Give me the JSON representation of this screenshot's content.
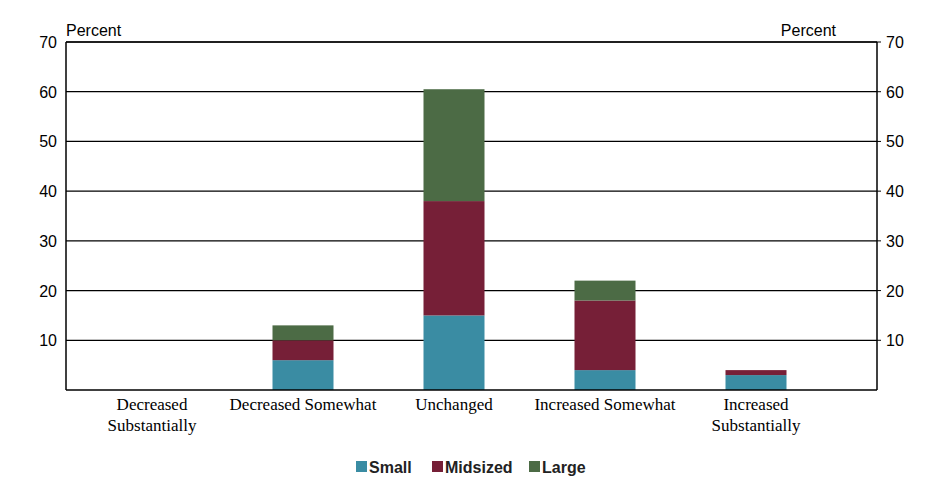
{
  "chart_data": {
    "type": "bar",
    "stacked": true,
    "grid": true,
    "y_label": "Percent",
    "y2_label": "Percent",
    "categories": [
      "Decreased Substantially",
      "Decreased Somewhat",
      "Unchanged",
      "Increased Somewhat",
      "Increased Substantially"
    ],
    "series": [
      {
        "name": "Small",
        "color": "#3a8ca3",
        "values": [
          0,
          6,
          15,
          4,
          3
        ]
      },
      {
        "name": "Midsized",
        "color": "#761f37",
        "values": [
          0,
          4,
          23,
          14,
          1
        ]
      },
      {
        "name": "Large",
        "color": "#4c6b45",
        "values": [
          0,
          3,
          22.5,
          4,
          0
        ]
      }
    ],
    "ylim": [
      0,
      70
    ],
    "yticks": [
      10,
      20,
      30,
      40,
      50,
      60,
      70
    ],
    "y2lim": [
      0,
      70
    ],
    "y2ticks": [
      10,
      20,
      30,
      40,
      50,
      60,
      70
    ],
    "legend": "bottom"
  }
}
